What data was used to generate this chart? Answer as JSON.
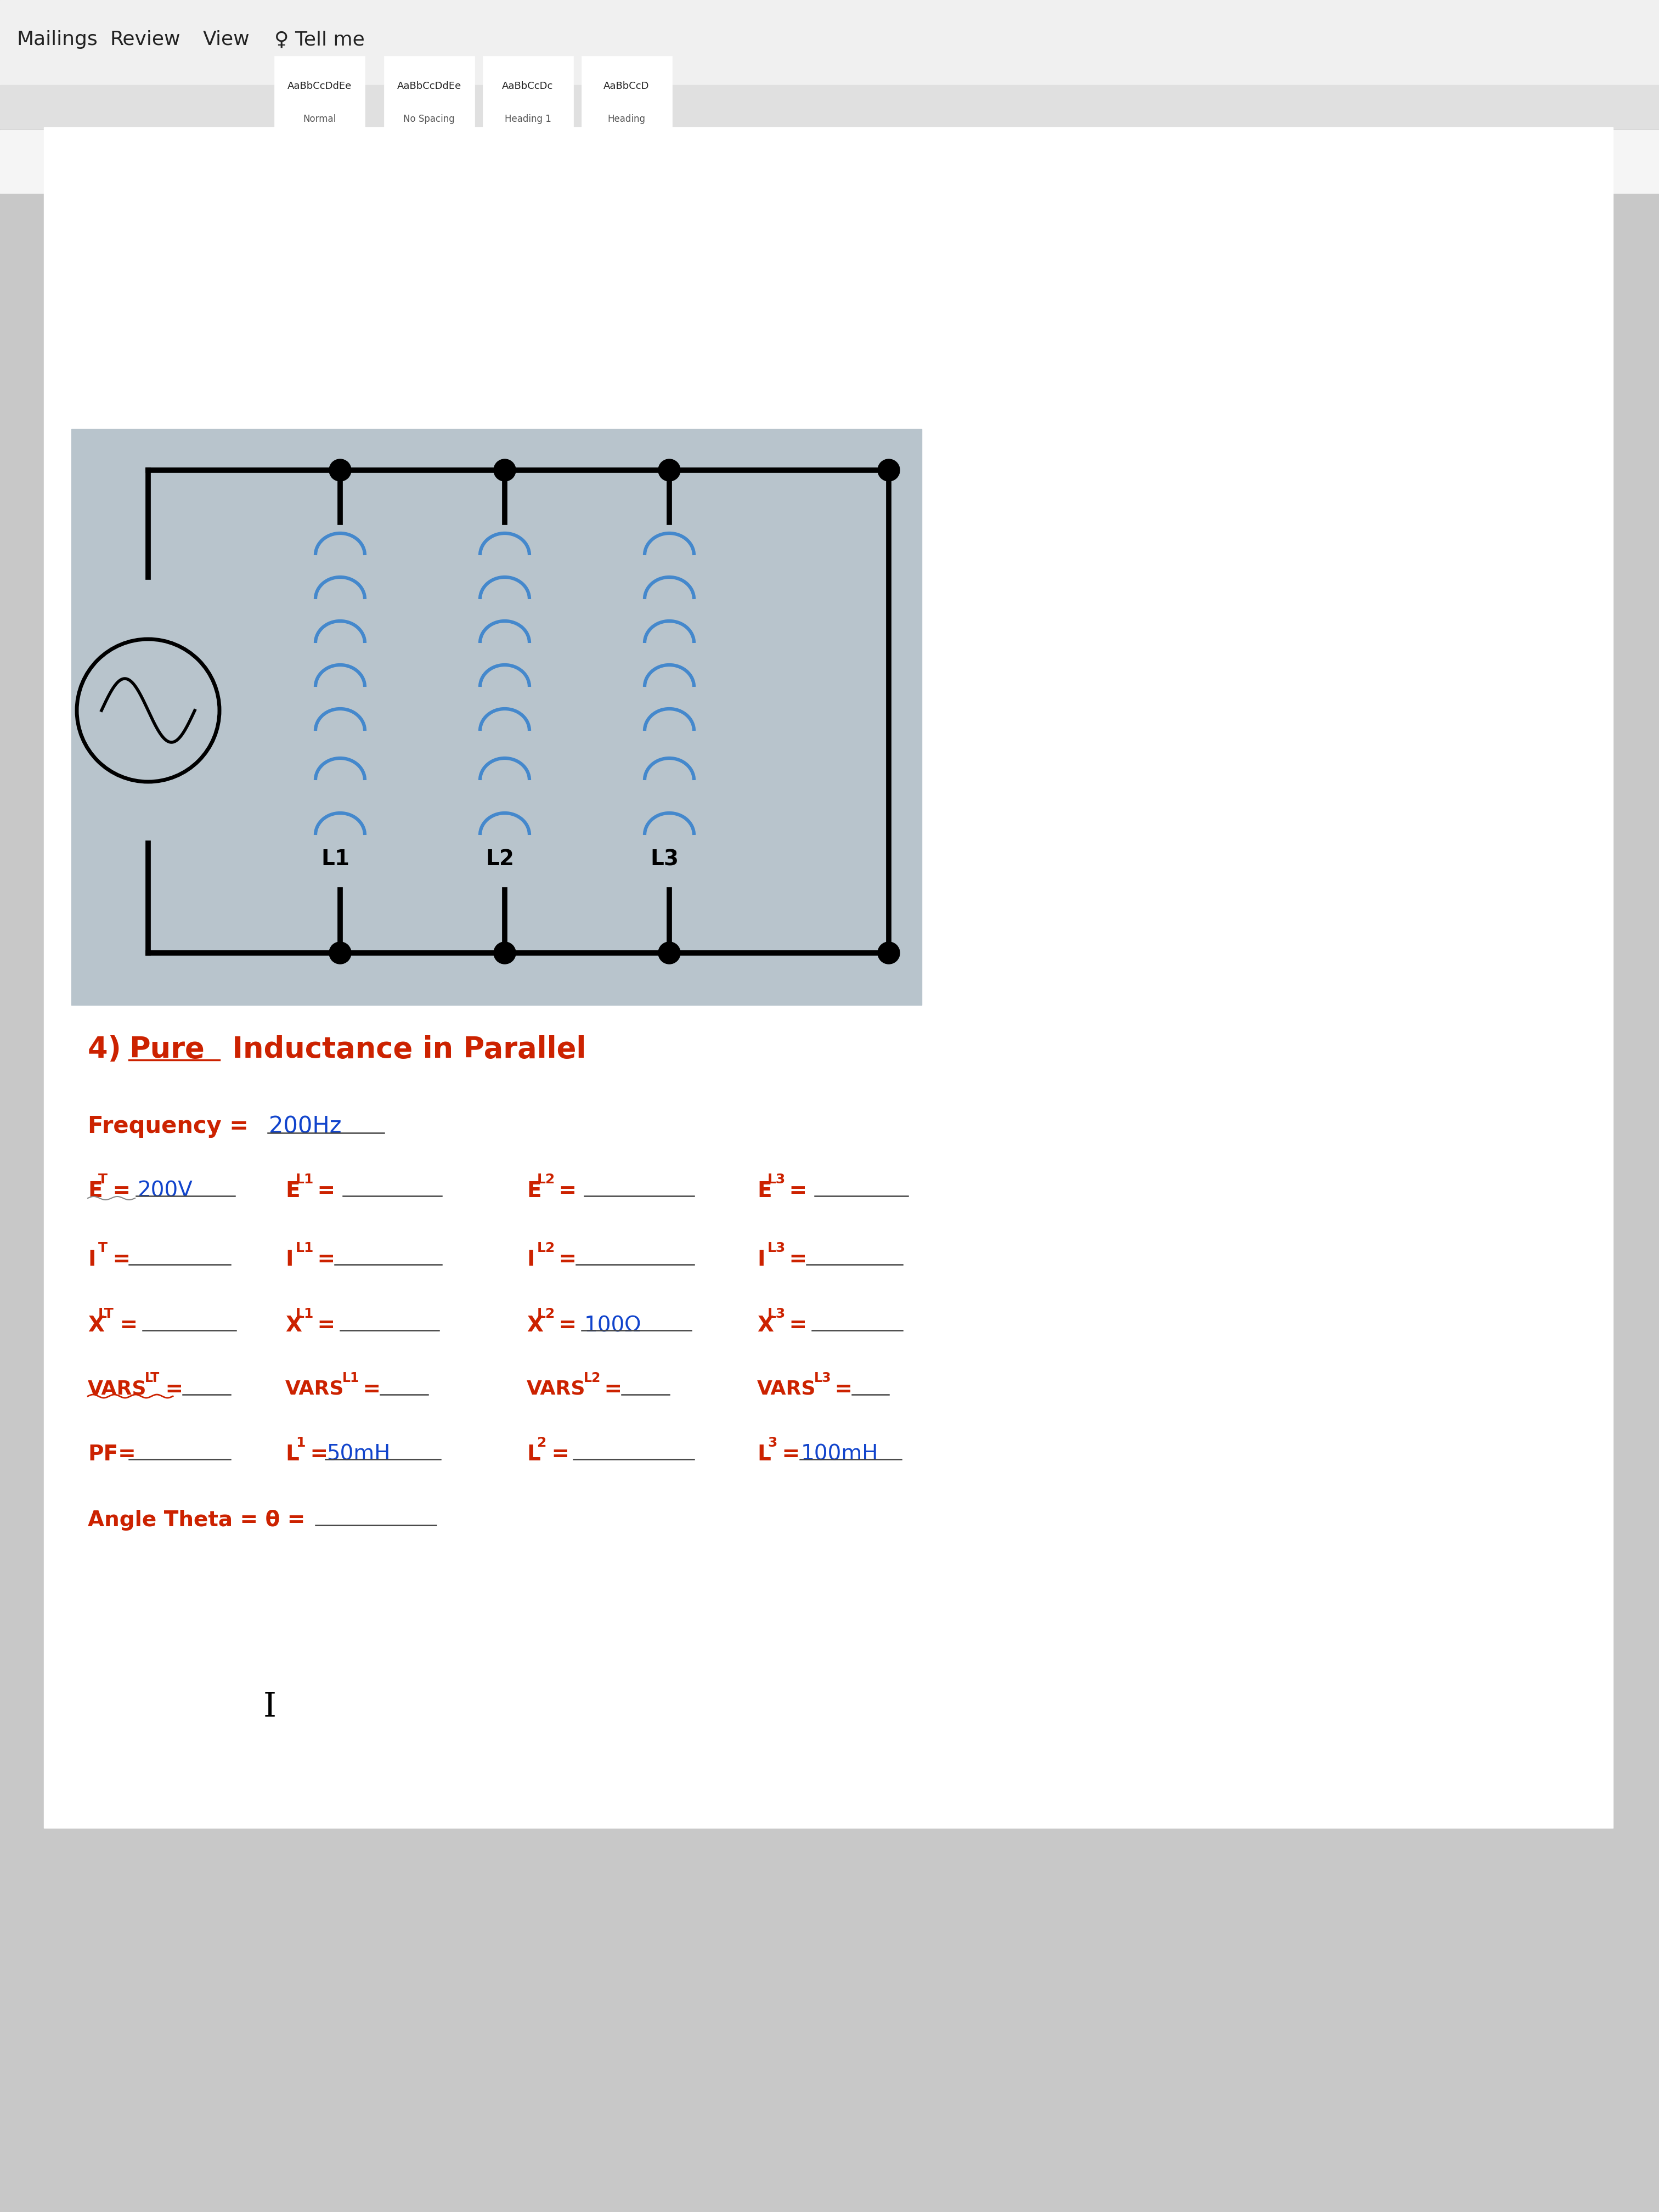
{
  "title": "4) Pure Inductance in Parallel",
  "bg_color": "#c8c8c8",
  "doc_bg": "#e8e8e8",
  "circuit_bg": "#b8c4cc",
  "toolbar_bg": "#f0f0f0",
  "ribbon_bg": "#f5f5f5",
  "frequency_value": "200Hz",
  "ET_value": "200V",
  "XL2_value": "100Ω",
  "L1_value": "50mH",
  "L3_value": "100mH",
  "red_color": "#cc2200",
  "blue_color": "#4488cc",
  "line_color": "#1a1a1a"
}
